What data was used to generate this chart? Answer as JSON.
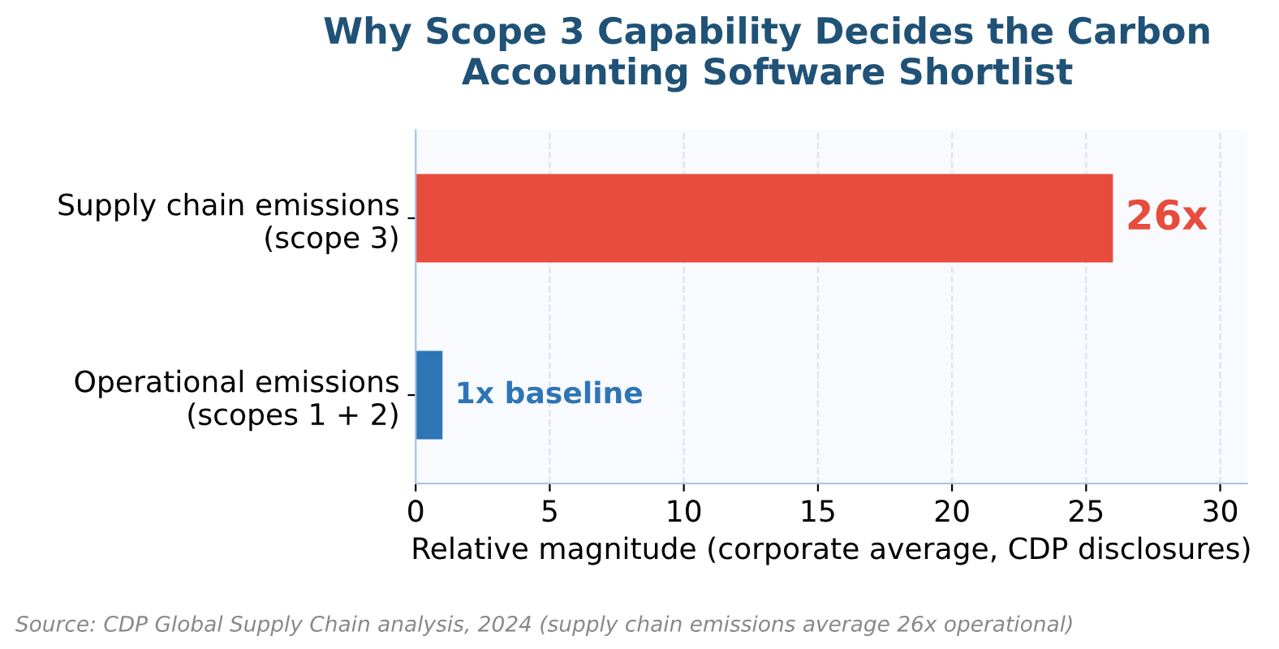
{
  "chart_data": {
    "type": "bar",
    "orientation": "horizontal",
    "title": "Why Scope 3 Capability Decides the Carbon\nAccounting Software Shortlist",
    "categories": [
      "Supply chain emissions\n(scope 3)",
      "Operational emissions\n(scopes 1 + 2)"
    ],
    "values": [
      26,
      1
    ],
    "colors": [
      "#e74c3c",
      "#2e75b6"
    ],
    "value_labels": [
      "26x",
      "1x baseline"
    ],
    "xlabel": "Relative magnitude (corporate average, CDP disclosures)",
    "xlim": [
      0,
      31
    ],
    "xticks": [
      0,
      5,
      10,
      15,
      20,
      25,
      30
    ],
    "grid": "x",
    "annotations": [
      "Source: CDP Global Supply Chain analysis, 2024 (supply chain emissions average 26x operational)"
    ]
  }
}
